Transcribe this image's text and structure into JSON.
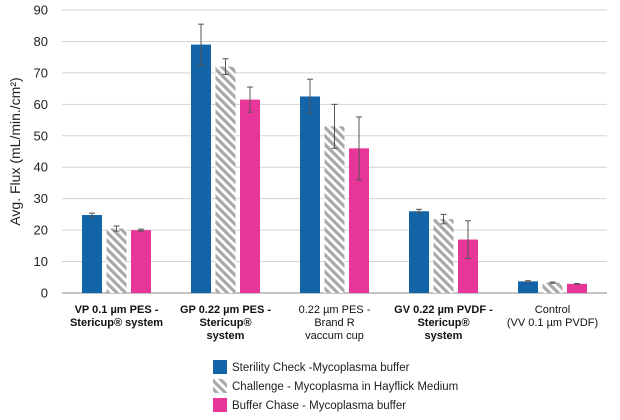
{
  "chart_data": {
    "type": "bar",
    "title": "",
    "xlabel": "",
    "ylabel": "Avg. Flux (mL/min./cm²)",
    "ylim": [
      0,
      90
    ],
    "yticks": [
      0,
      10,
      20,
      30,
      40,
      50,
      60,
      70,
      80,
      90
    ],
    "grid": true,
    "legend_position": "bottom",
    "categories": [
      {
        "lines": [
          "VP 0.1 µm PES -",
          "Stericup® system"
        ],
        "bold": true
      },
      {
        "lines": [
          "GP 0.22 µm PES -",
          "Stericup®",
          "system"
        ],
        "bold": true
      },
      {
        "lines": [
          "0.22 µm PES -",
          "Brand R",
          "vaccum cup"
        ],
        "bold": false
      },
      {
        "lines": [
          "GV 0.22 µm PVDF -",
          "Stericup®",
          "system"
        ],
        "bold": true
      },
      {
        "lines": [
          "Control",
          "(VV 0.1 µm PVDF)"
        ],
        "bold": false
      }
    ],
    "series": [
      {
        "name": "Sterility Check -Mycoplasma buffer",
        "color": "#1464a8",
        "pattern": "solid",
        "values": [
          24.8,
          79.0,
          62.5,
          26.0,
          3.7
        ],
        "errors": [
          0.6,
          6.5,
          5.5,
          0.6,
          0.2
        ]
      },
      {
        "name": "Challenge - Mycoplasma in Hayflick Medium",
        "color": "#a9a9a9",
        "pattern": "hatch",
        "values": [
          20.5,
          72.0,
          53.0,
          23.5,
          3.3
        ],
        "errors": [
          0.8,
          2.5,
          7.0,
          1.5,
          0.2
        ]
      },
      {
        "name": "Buffer Chase - Mycoplasma buffer",
        "color": "#e8359a",
        "pattern": "solid",
        "values": [
          20.0,
          61.5,
          46.0,
          17.0,
          2.9
        ],
        "errors": [
          0.3,
          4.0,
          10.0,
          6.0,
          0.1
        ]
      }
    ]
  }
}
